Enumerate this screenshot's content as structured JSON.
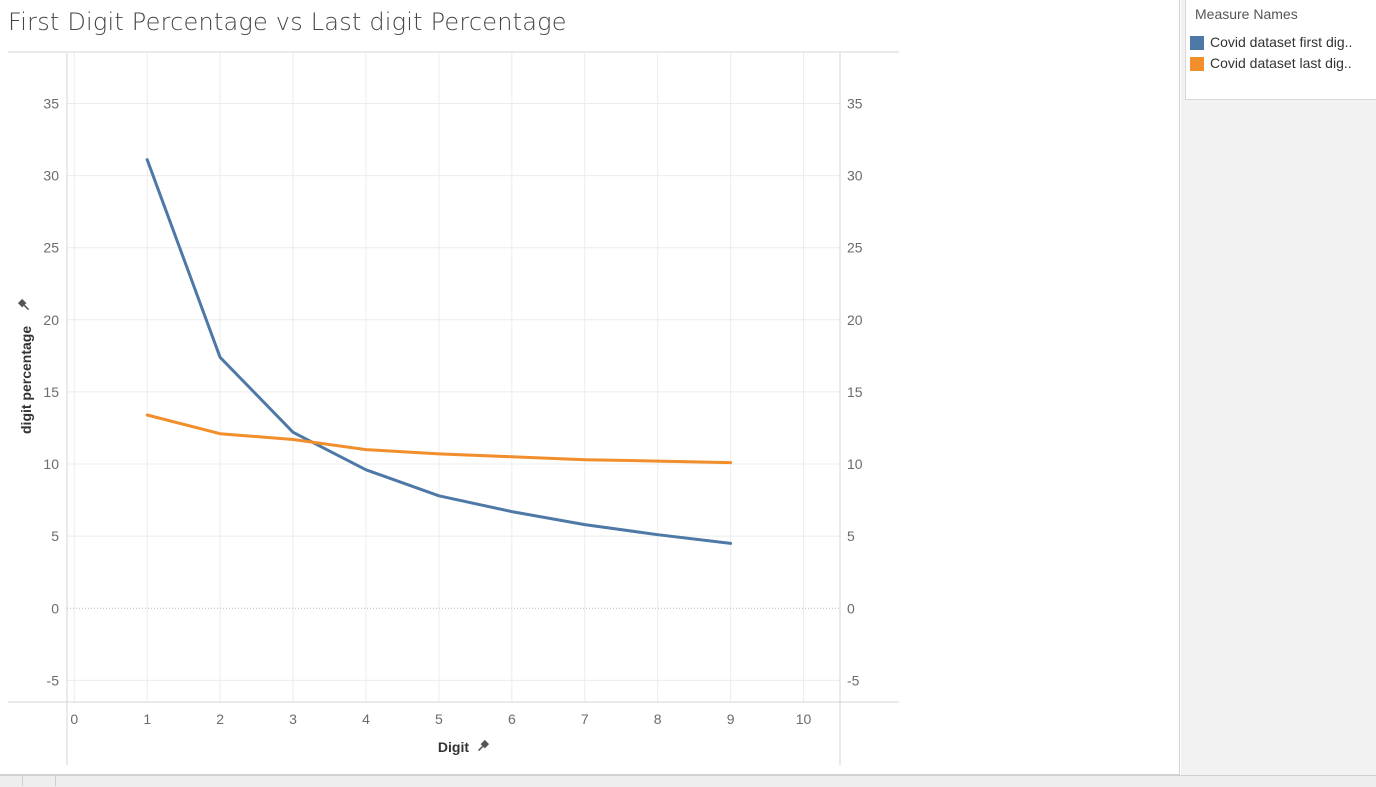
{
  "title": "First Digit Percentage vs Last digit Percentage",
  "legend": {
    "title": "Measure Names",
    "items": [
      {
        "label": "Covid dataset first dig..",
        "color": "#4e79a7"
      },
      {
        "label": "Covid dataset last dig..",
        "color": "#f28e2b"
      }
    ]
  },
  "chart_data": {
    "type": "line",
    "title": "First Digit Percentage vs Last digit Percentage",
    "xlabel": "Digit",
    "ylabel": "digit percentage",
    "xlim": [
      -0.1,
      10.5
    ],
    "ylim": [
      -6.5,
      38.5
    ],
    "xticks": [
      0,
      1,
      2,
      3,
      4,
      5,
      6,
      7,
      8,
      9,
      10
    ],
    "yticks": [
      -5,
      0,
      5,
      10,
      15,
      20,
      25,
      30,
      35
    ],
    "dual_axis": true,
    "grid": true,
    "legend_position": "right",
    "x": [
      1,
      2,
      3,
      4,
      5,
      6,
      7,
      8,
      9
    ],
    "series": [
      {
        "name": "Covid dataset first dig..",
        "color": "#4e79a7",
        "values": [
          31.1,
          17.4,
          12.2,
          9.6,
          7.8,
          6.7,
          5.8,
          5.1,
          4.5
        ]
      },
      {
        "name": "Covid dataset last dig..",
        "color": "#f28e2b",
        "values": [
          13.4,
          12.1,
          11.7,
          11.0,
          10.7,
          10.5,
          10.3,
          10.2,
          10.1
        ]
      }
    ]
  }
}
